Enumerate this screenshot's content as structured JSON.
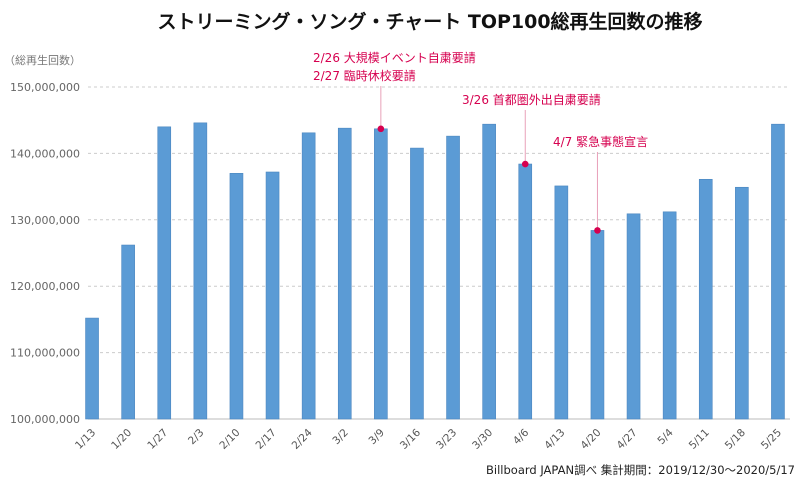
{
  "chart_data": {
    "type": "bar",
    "title": "ストリーミング・ソング・チャート TOP100総再生回数の推移",
    "ylabel": "（総再生回数）",
    "xlabel": "",
    "ylim": [
      100000000,
      150000000
    ],
    "yticks": [
      100000000,
      110000000,
      120000000,
      130000000,
      140000000,
      150000000
    ],
    "ytick_labels": [
      "100,000,000",
      "110,000,000",
      "120,000,000",
      "130,000,000",
      "140,000,000",
      "150,000,000"
    ],
    "grid": true,
    "bar_color": "#5b9bd5",
    "annotation_color": "#d6004f",
    "categories": [
      "1/13",
      "1/20",
      "1/27",
      "2/3",
      "2/10",
      "2/17",
      "2/24",
      "3/2",
      "3/9",
      "3/16",
      "3/23",
      "3/30",
      "4/6",
      "4/13",
      "4/20",
      "4/27",
      "5/4",
      "5/11",
      "5/18",
      "5/25"
    ],
    "values": [
      115200000,
      126200000,
      144000000,
      144600000,
      137000000,
      137200000,
      143100000,
      143800000,
      143700000,
      140800000,
      142600000,
      144400000,
      138400000,
      135100000,
      128400000,
      130900000,
      131200000,
      136100000,
      134900000,
      144400000
    ],
    "annotations": [
      {
        "category": "3/9",
        "lines": [
          "2/26 大規模イベント自粛要請",
          "2/27 臨時休校要請"
        ]
      },
      {
        "category": "4/6",
        "lines": [
          "3/26 首都圏外出自粛要請"
        ]
      },
      {
        "category": "4/20",
        "lines": [
          "4/7 緊急事態宣言"
        ]
      }
    ],
    "source": "Billboard JAPAN調べ 集計期間：2019/12/30〜2020/5/17"
  }
}
